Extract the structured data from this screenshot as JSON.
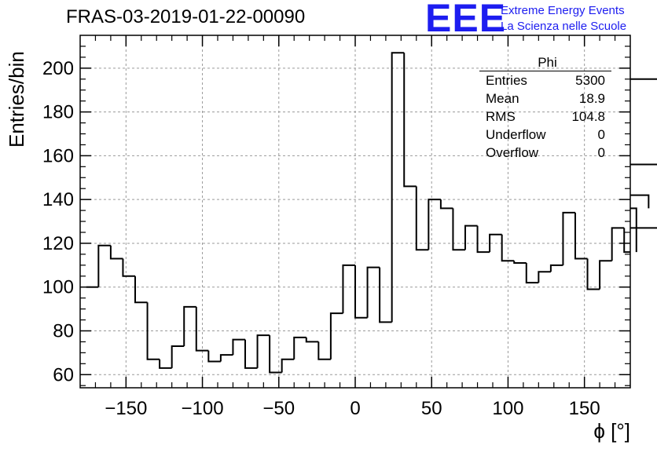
{
  "chart_data": {
    "type": "histogram",
    "title": "FRAS-03-2019-01-22-00090",
    "xlabel": "ϕ [°]",
    "ylabel": "Entries/bin",
    "xlim": [
      -180,
      180
    ],
    "ylim": [
      54,
      215
    ],
    "grid": true,
    "x_ticks": [
      -150,
      -100,
      -50,
      0,
      50,
      100,
      150
    ],
    "x_tick_labels": [
      "−150",
      "−100",
      "−50",
      "0",
      "50",
      "100",
      "150"
    ],
    "y_ticks": [
      60,
      80,
      100,
      120,
      140,
      160,
      180,
      200
    ],
    "y_tick_labels": [
      "60",
      "80",
      "100",
      "120",
      "140",
      "160",
      "180",
      "200"
    ],
    "bin_width": 8,
    "bin_edges_start": -176,
    "values": [
      100,
      119,
      113,
      105,
      93,
      67,
      63,
      73,
      91,
      71,
      66,
      69,
      76,
      63,
      78,
      61,
      67,
      77,
      75,
      67,
      88,
      110,
      86,
      109,
      84,
      207,
      146,
      117,
      140,
      136,
      117,
      128,
      116,
      124,
      112,
      111,
      102,
      107,
      110,
      134,
      113,
      99,
      112,
      127,
      116,
      136,
      142,
      156,
      127,
      195
    ]
  },
  "stats_box": {
    "title": "Phi",
    "rows": [
      {
        "label": "Entries",
        "value": "5300"
      },
      {
        "label": "Mean",
        "value": "18.9"
      },
      {
        "label": "RMS",
        "value": "104.8"
      },
      {
        "label": "Underflow",
        "value": "0"
      },
      {
        "label": "Overflow",
        "value": "0"
      }
    ]
  },
  "logo": {
    "mark": "EEE",
    "line1": "Extreme Energy Events",
    "line2": "La Scienza nelle Scuole",
    "color": "#1d1df0"
  }
}
